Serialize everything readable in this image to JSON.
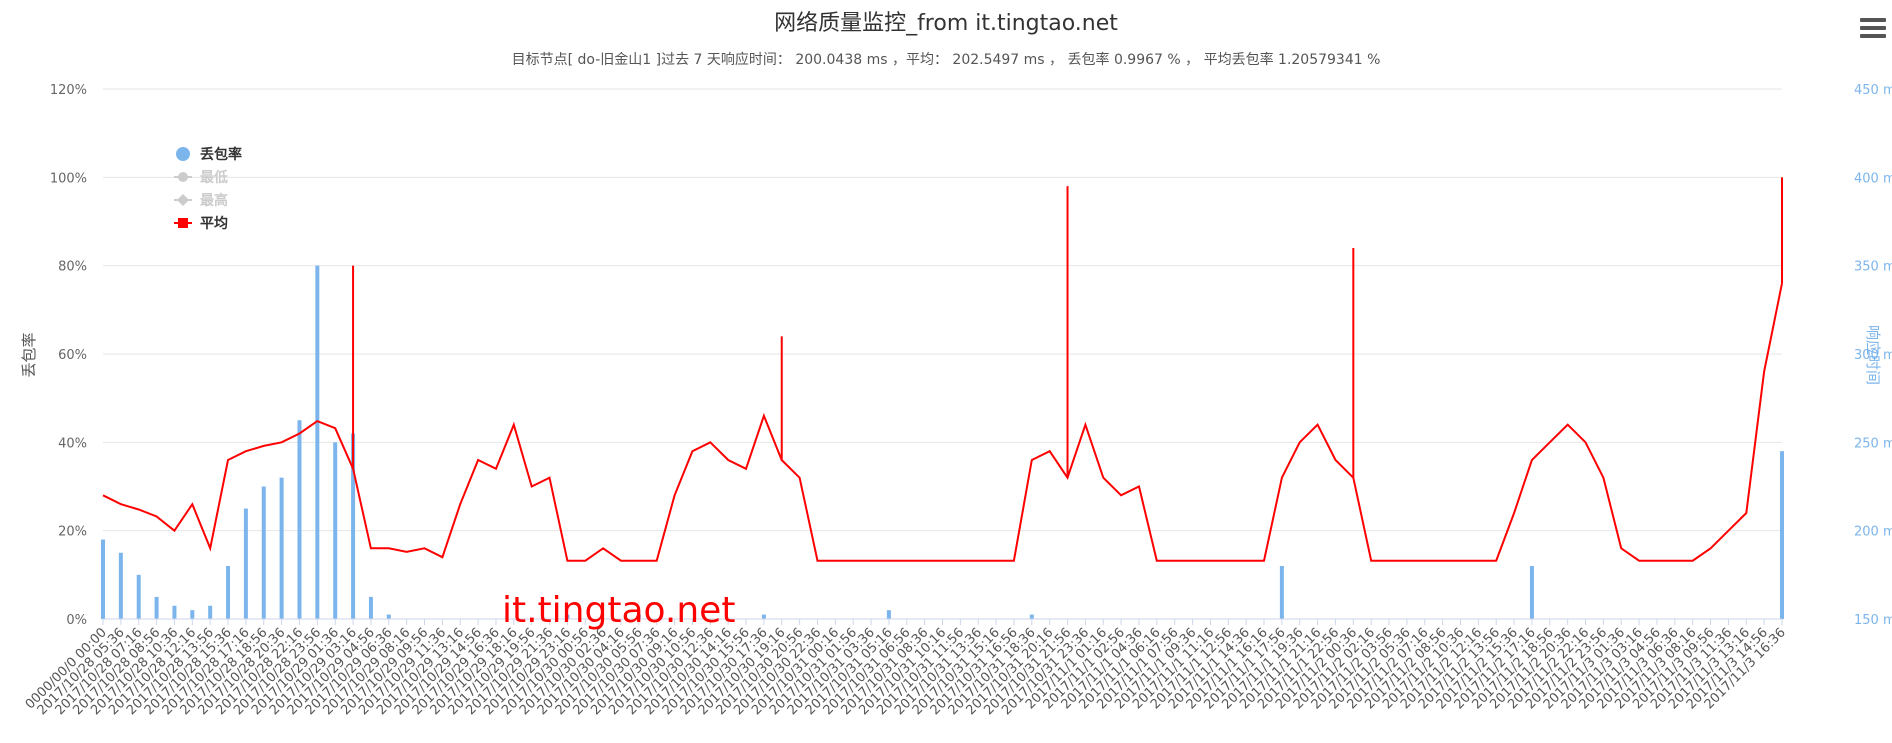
{
  "title": "网络质量监控_from it.tingtao.net",
  "subtitle": "目标节点[ do-旧金山1 ]过去 7 天响应时间： 200.0438 ms ，平均： 202.5497 ms ， 丢包率 0.9967 % ， 平均丢包率 1.20579341 %",
  "watermark": "it.tingtao.net",
  "colors": {
    "loss": "#7cb5ec",
    "avg": "#ff0000",
    "min_legend": "#cccccc",
    "max_legend": "#cccccc",
    "grid": "#e6e6e6"
  },
  "icons": {
    "menu": "hamburger-menu-icon"
  },
  "chart_data": {
    "type": "line",
    "y_left": {
      "title": "丢包率",
      "min": 0,
      "max": 120,
      "ticks": [
        "0%",
        "20%",
        "40%",
        "60%",
        "80%",
        "100%",
        "120%"
      ]
    },
    "y_right": {
      "title": "响应时间",
      "min": 150,
      "max": 450,
      "ticks": [
        "150 ms",
        "200 ms",
        "250 ms",
        "300 ms",
        "350 ms",
        "400 ms",
        "450 ms"
      ]
    },
    "grid": true,
    "legend_position": "top-left",
    "legend": [
      {
        "name": "丢包率",
        "symbol": "circle",
        "active": true
      },
      {
        "name": "最低",
        "symbol": "circle-line",
        "active": false
      },
      {
        "name": "最高",
        "symbol": "diamond-line",
        "active": false
      },
      {
        "name": "平均",
        "symbol": "square-line",
        "active": true
      }
    ],
    "x_labels": [
      "0000/00/0 00:00",
      "2017/10/28 05:36",
      "2017/10/28 07:16",
      "2017/10/28 08:56",
      "2017/10/28 10:36",
      "2017/10/28 12:16",
      "2017/10/28 13:56",
      "2017/10/28 15:36",
      "2017/10/28 17:16",
      "2017/10/28 18:56",
      "2017/10/28 20:36",
      "2017/10/28 22:16",
      "2017/10/28 23:56",
      "2017/10/29 01:36",
      "2017/10/29 03:16",
      "2017/10/29 04:56",
      "2017/10/29 06:36",
      "2017/10/29 08:16",
      "2017/10/29 09:56",
      "2017/10/29 11:36",
      "2017/10/29 13:16",
      "2017/10/29 14:56",
      "2017/10/29 16:36",
      "2017/10/29 18:16",
      "2017/10/29 19:56",
      "2017/10/29 21:36",
      "2017/10/29 23:16",
      "2017/10/30 00:56",
      "2017/10/30 02:36",
      "2017/10/30 04:16",
      "2017/10/30 05:56",
      "2017/10/30 07:36",
      "2017/10/30 09:16",
      "2017/10/30 10:56",
      "2017/10/30 12:36",
      "2017/10/30 14:16",
      "2017/10/30 15:56",
      "2017/10/30 17:36",
      "2017/10/30 19:16",
      "2017/10/30 20:56",
      "2017/10/30 22:36",
      "2017/10/31 00:16",
      "2017/10/31 01:56",
      "2017/10/31 03:36",
      "2017/10/31 05:16",
      "2017/10/31 06:56",
      "2017/10/31 08:36",
      "2017/10/31 10:16",
      "2017/10/31 11:56",
      "2017/10/31 13:36",
      "2017/10/31 15:16",
      "2017/10/31 16:56",
      "2017/10/31 18:36",
      "2017/10/31 20:16",
      "2017/10/31 21:56",
      "2017/10/31 23:36",
      "2017/11/1 01:16",
      "2017/11/1 02:56",
      "2017/11/1 04:36",
      "2017/11/1 06:16",
      "2017/11/1 07:56",
      "2017/11/1 09:36",
      "2017/11/1 11:16",
      "2017/11/1 12:56",
      "2017/11/1 14:36",
      "2017/11/1 16:16",
      "2017/11/1 17:56",
      "2017/11/1 19:36",
      "2017/11/1 21:16",
      "2017/11/1 22:56",
      "2017/11/2 00:36",
      "2017/11/2 02:16",
      "2017/11/2 03:56",
      "2017/11/2 05:36",
      "2017/11/2 07:16",
      "2017/11/2 08:56",
      "2017/11/2 10:36",
      "2017/11/2 12:16",
      "2017/11/2 13:56",
      "2017/11/2 15:36",
      "2017/11/2 17:16",
      "2017/11/2 18:56",
      "2017/11/2 20:36",
      "2017/11/2 22:16",
      "2017/11/2 23:56",
      "2017/11/3 01:36",
      "2017/11/3 03:16",
      "2017/11/3 04:56",
      "2017/11/3 06:36",
      "2017/11/3 08:16",
      "2017/11/3 09:56",
      "2017/11/3 11:36",
      "2017/11/3 13:16",
      "2017/11/3 14:56",
      "2017/11/3 16:36"
    ],
    "series": [
      {
        "name": "丢包率",
        "axis": "left",
        "values": [
          18,
          15,
          10,
          5,
          3,
          2,
          3,
          12,
          25,
          30,
          32,
          45,
          80,
          40,
          42,
          5,
          1,
          0,
          0,
          0,
          0,
          0,
          0,
          0,
          0,
          0,
          1,
          0,
          0,
          0,
          1,
          0,
          0,
          0,
          0,
          0,
          0,
          1,
          0,
          0,
          0,
          0,
          0,
          0,
          2,
          0,
          0,
          0,
          0,
          0,
          0,
          0,
          1,
          0,
          0,
          0,
          0,
          0,
          0,
          0,
          0,
          0,
          0,
          0,
          0,
          0,
          12,
          0,
          0,
          0,
          0,
          0,
          0,
          0,
          0,
          0,
          0,
          0,
          0,
          0,
          12,
          0,
          0,
          0,
          0,
          0,
          0,
          0,
          0,
          0,
          0,
          0,
          0,
          0,
          38
        ]
      },
      {
        "name": "平均",
        "axis": "right",
        "values": [
          220,
          215,
          212,
          208,
          200,
          215,
          190,
          240,
          245,
          248,
          250,
          255,
          262,
          258,
          235,
          190,
          190,
          188,
          190,
          185,
          215,
          240,
          235,
          260,
          225,
          230,
          183,
          183,
          190,
          183,
          183,
          183,
          220,
          245,
          250,
          240,
          235,
          265,
          240,
          230,
          183,
          183,
          183,
          183,
          183,
          183,
          183,
          183,
          183,
          183,
          183,
          183,
          240,
          245,
          230,
          260,
          230,
          220,
          225,
          183,
          183,
          183,
          183,
          183,
          183,
          183,
          230,
          250,
          260,
          240,
          230,
          183,
          183,
          183,
          183,
          183,
          183,
          183,
          183,
          210,
          240,
          250,
          260,
          250,
          230,
          190,
          183,
          183,
          183,
          183,
          190,
          200,
          210,
          290,
          340
        ],
        "peaks": [
          {
            "x": 14,
            "value": 350
          },
          {
            "x": 38,
            "value": 310
          },
          {
            "x": 54,
            "value": 395
          },
          {
            "x": 70,
            "value": 360
          },
          {
            "x": 94,
            "value": 400
          }
        ]
      }
    ]
  }
}
